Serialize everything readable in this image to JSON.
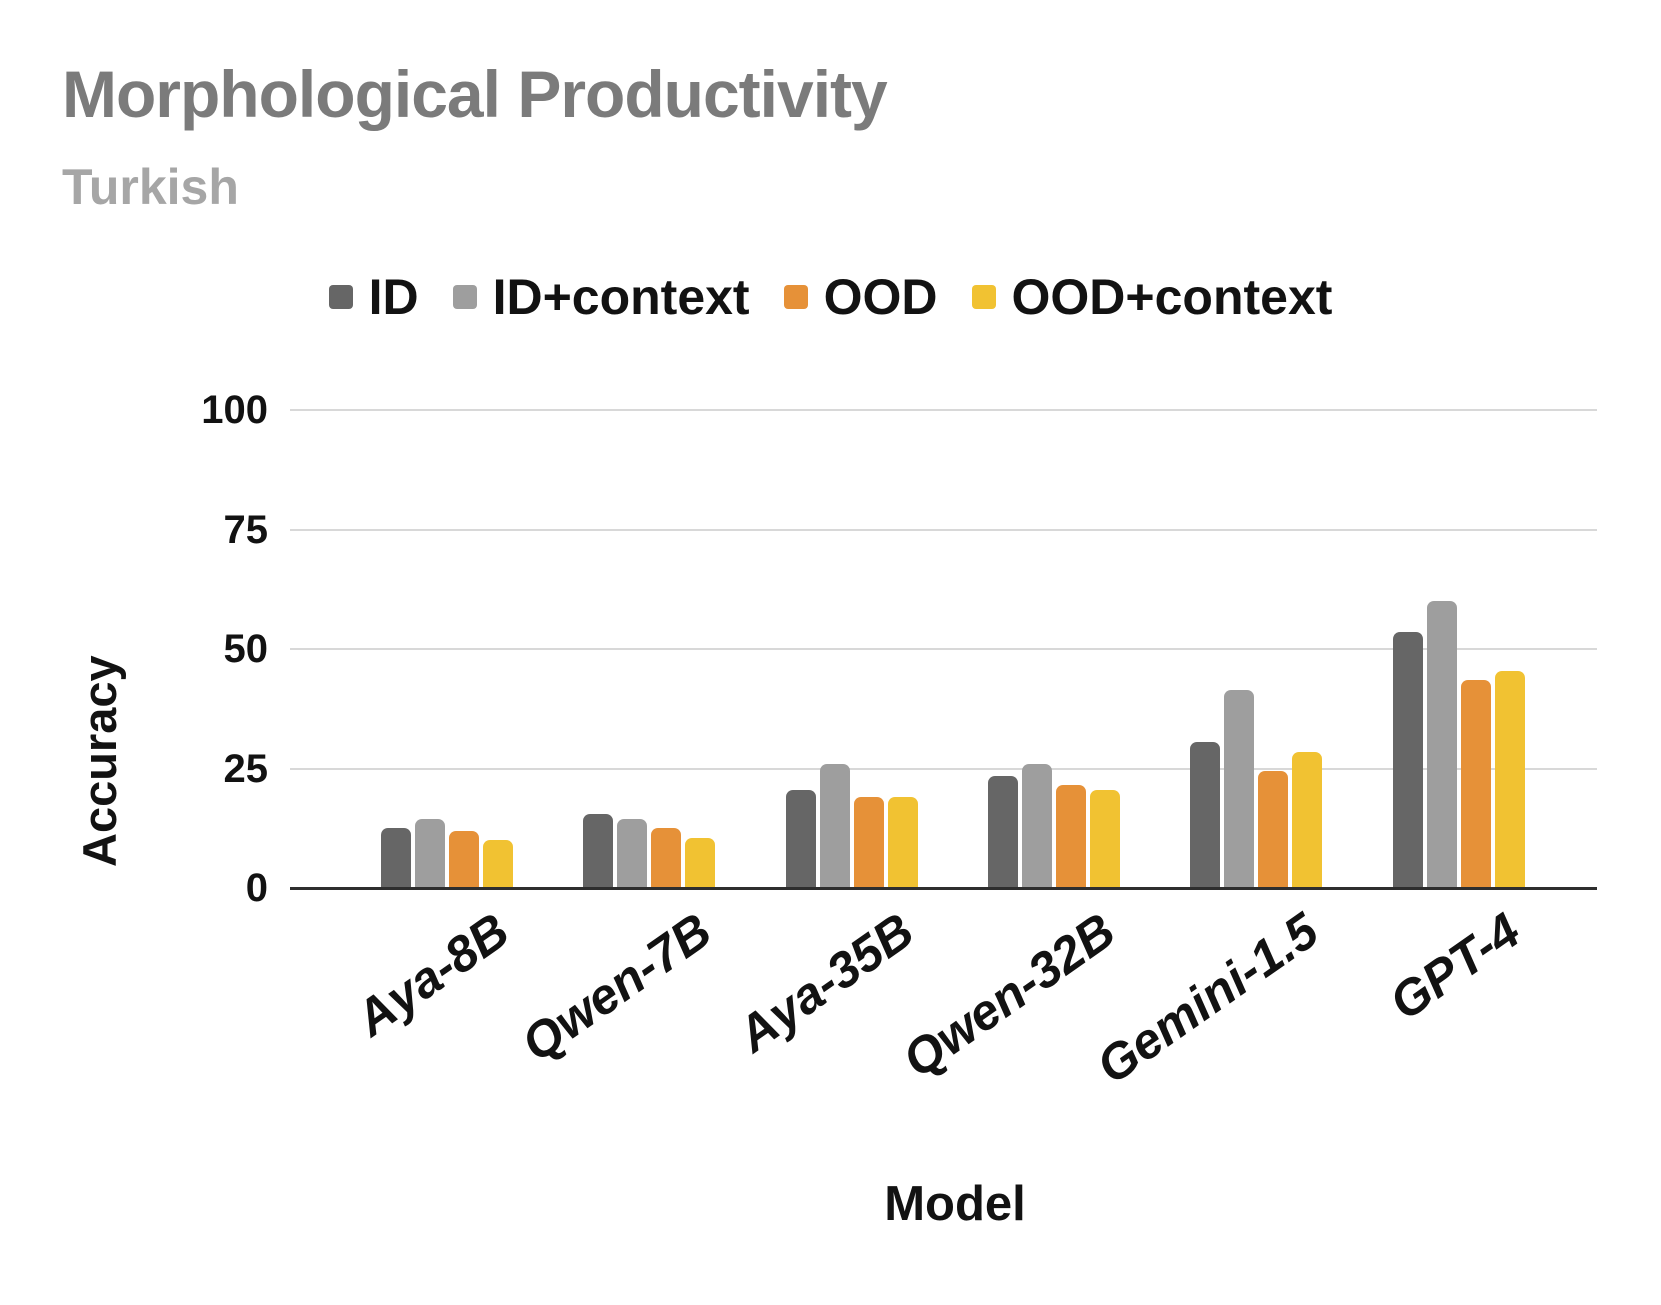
{
  "title": "Morphological Productivity",
  "subtitle": "Turkish",
  "colors": {
    "title": "#7b7b7b",
    "subtitle": "#a6a6a6",
    "text": "#121212",
    "gridline": "#d8d8d8",
    "axis": "#2e2e2e",
    "background": "#ffffff"
  },
  "chart_data": {
    "type": "bar",
    "title": "Morphological Productivity",
    "subtitle": "Turkish",
    "xlabel": "Model",
    "ylabel": "Accuracy",
    "ylim": [
      0,
      100
    ],
    "yticks_display": [
      100,
      75,
      50,
      25,
      0
    ],
    "grid": true,
    "legend_position": "top",
    "categories": [
      "Aya-8B",
      "Qwen-7B",
      "Aya-35B",
      "Qwen-32B",
      "Gemini-1.5",
      "GPT-4"
    ],
    "series": [
      {
        "name": "ID",
        "color": "#666666",
        "values": [
          12.5,
          15.5,
          20.5,
          23.5,
          30.5,
          53.5
        ]
      },
      {
        "name": "ID+context",
        "color": "#9e9e9e",
        "values": [
          14.5,
          14.5,
          26.0,
          26.0,
          41.5,
          60.0
        ]
      },
      {
        "name": "OOD",
        "color": "#e69138",
        "values": [
          12.0,
          12.5,
          19.0,
          21.5,
          24.5,
          43.5
        ]
      },
      {
        "name": "OOD+context",
        "color": "#f1c232",
        "values": [
          10.0,
          10.5,
          19.0,
          20.5,
          28.5,
          45.5
        ]
      }
    ]
  }
}
